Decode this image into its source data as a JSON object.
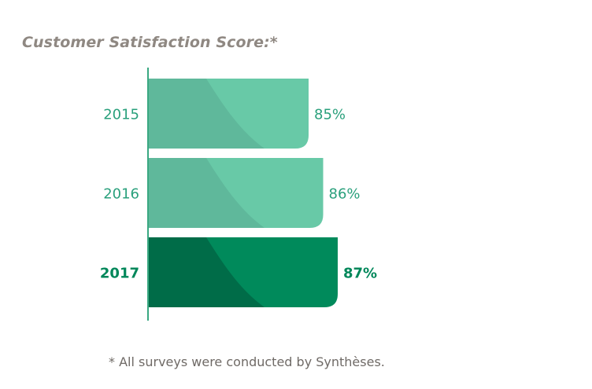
{
  "chart_data": {
    "type": "bar",
    "orientation": "horizontal",
    "title": "Customer Satisfaction Score:*",
    "categories": [
      "2015",
      "2016",
      "2017"
    ],
    "values": [
      85,
      86,
      87
    ],
    "value_labels": [
      "85%",
      "86%",
      "87%"
    ],
    "unit": "%",
    "highlight_category": "2017",
    "grid": false,
    "legend": "none"
  },
  "colors": {
    "bar_light": "#68c9a7",
    "bar_light_shadow": "#5fb89b",
    "bar_dark": "#008a5b",
    "bar_dark_shadow": "#006c48",
    "label_light": "#2aa07c",
    "label_dark": "#00875a",
    "axis": "#3aa882",
    "title": "#8f8882",
    "footnote": "#6f6a66"
  },
  "footnote": "* All surveys were conducted by Synthèses."
}
